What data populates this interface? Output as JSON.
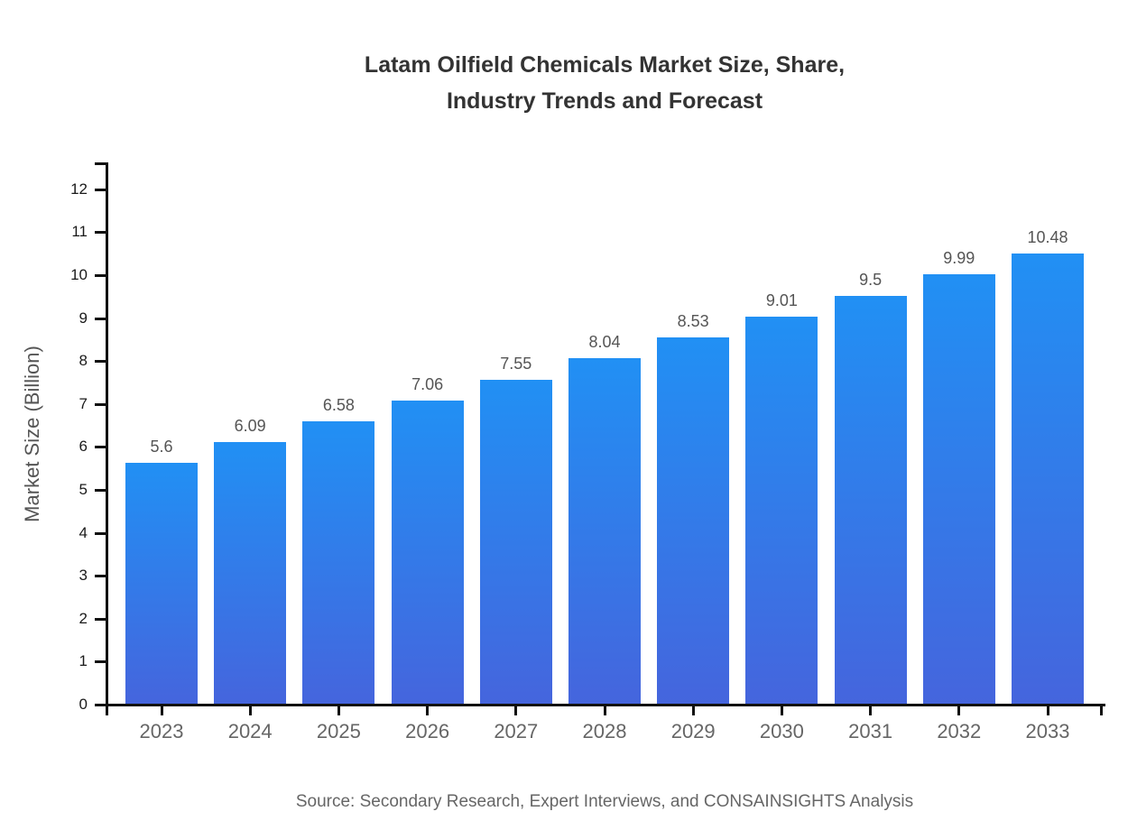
{
  "header": {
    "title_line1": "Latam Oilfield Chemicals Market Size, Share,",
    "title_line2": "Industry Trends and Forecast"
  },
  "footer": {
    "source_text": "Source: Secondary Research, Expert Interviews, and CONSAINSIGHTS Analysis"
  },
  "colors": {
    "bar_gradient_top": "#2190f4",
    "bar_gradient_bottom": "#4565dd",
    "axis_line": "#111111",
    "tick_label": "#1a1a1a",
    "category_label": "#666666",
    "value_label": "#555555",
    "title_text": "#333333"
  },
  "chart_data": {
    "type": "bar",
    "title": "Latam Oilfield Chemicals Market Size, Share, Industry Trends and Forecast",
    "categories": [
      "2023",
      "2024",
      "2025",
      "2026",
      "2027",
      "2028",
      "2029",
      "2030",
      "2031",
      "2032",
      "2033"
    ],
    "values": [
      5.6,
      6.09,
      6.58,
      7.06,
      7.55,
      8.04,
      8.53,
      9.01,
      9.5,
      9.99,
      10.48
    ],
    "value_labels": [
      "5.6",
      "6.09",
      "6.58",
      "7.06",
      "7.55",
      "8.04",
      "8.53",
      "9.01",
      "9.5",
      "9.99",
      "10.48"
    ],
    "xlabel": "",
    "ylabel": "Market Size (Billion)",
    "ylim": [
      0,
      12.6
    ],
    "yticks": [
      0,
      1,
      2,
      3,
      4,
      5,
      6,
      7,
      8,
      9,
      10,
      11,
      12
    ],
    "grid": false,
    "legend": "none",
    "bar_gradient": [
      "#2190f4",
      "#4565dd"
    ],
    "source": "Source: Secondary Research, Expert Interviews, and CONSAINSIGHTS Analysis"
  }
}
